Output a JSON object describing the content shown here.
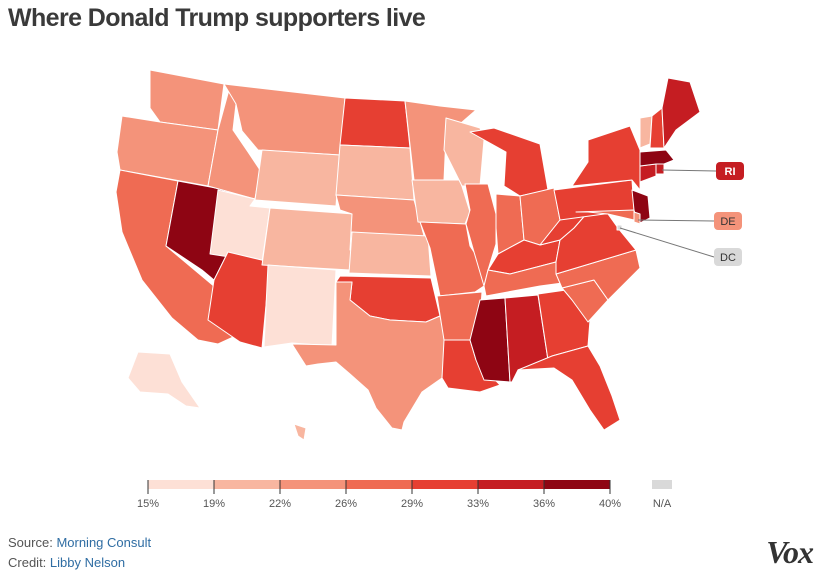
{
  "title": "Where Donald Trump supporters live",
  "colors": {
    "bins": [
      "#fde0d6",
      "#f8b6a0",
      "#f4937a",
      "#ef6b53",
      "#e63f32",
      "#c51d22",
      "#8e0513"
    ],
    "na": "#d9d9d9",
    "border": "#ffffff"
  },
  "chart_data": {
    "type": "choropleth",
    "region": "United States",
    "metric": "Share of Donald Trump supporters by state (binned)",
    "legend": {
      "ticks": [
        "15%",
        "19%",
        "22%",
        "26%",
        "29%",
        "33%",
        "36%",
        "40%"
      ],
      "na_label": "N/A"
    },
    "states": [
      {
        "code": "WA",
        "bin": 2
      },
      {
        "code": "OR",
        "bin": 2
      },
      {
        "code": "CA",
        "bin": 3
      },
      {
        "code": "NV",
        "bin": 6
      },
      {
        "code": "ID",
        "bin": 2
      },
      {
        "code": "MT",
        "bin": 2
      },
      {
        "code": "WY",
        "bin": 1
      },
      {
        "code": "UT",
        "bin": 0
      },
      {
        "code": "AZ",
        "bin": 4
      },
      {
        "code": "CO",
        "bin": 1
      },
      {
        "code": "NM",
        "bin": 0
      },
      {
        "code": "ND",
        "bin": 4
      },
      {
        "code": "SD",
        "bin": 1
      },
      {
        "code": "NE",
        "bin": 2
      },
      {
        "code": "KS",
        "bin": 1
      },
      {
        "code": "OK",
        "bin": 4
      },
      {
        "code": "TX",
        "bin": 2
      },
      {
        "code": "MN",
        "bin": 2
      },
      {
        "code": "IA",
        "bin": 1
      },
      {
        "code": "MO",
        "bin": 3
      },
      {
        "code": "AR",
        "bin": 3
      },
      {
        "code": "LA",
        "bin": 4
      },
      {
        "code": "WI",
        "bin": 1
      },
      {
        "code": "IL",
        "bin": 3
      },
      {
        "code": "MI",
        "bin": 4
      },
      {
        "code": "IN",
        "bin": 3
      },
      {
        "code": "OH",
        "bin": 3
      },
      {
        "code": "KY",
        "bin": 4
      },
      {
        "code": "TN",
        "bin": 3
      },
      {
        "code": "MS",
        "bin": 6
      },
      {
        "code": "AL",
        "bin": 5
      },
      {
        "code": "GA",
        "bin": 4
      },
      {
        "code": "FL",
        "bin": 4
      },
      {
        "code": "SC",
        "bin": 3
      },
      {
        "code": "NC",
        "bin": 3
      },
      {
        "code": "VA",
        "bin": 4
      },
      {
        "code": "WV",
        "bin": 4
      },
      {
        "code": "PA",
        "bin": 4
      },
      {
        "code": "NY",
        "bin": 4
      },
      {
        "code": "NJ",
        "bin": 6
      },
      {
        "code": "MD",
        "bin": 3
      },
      {
        "code": "DE",
        "bin": 2
      },
      {
        "code": "DC",
        "bin": null
      },
      {
        "code": "CT",
        "bin": 5
      },
      {
        "code": "RI",
        "bin": 5
      },
      {
        "code": "MA",
        "bin": 6
      },
      {
        "code": "VT",
        "bin": 1
      },
      {
        "code": "NH",
        "bin": 4
      },
      {
        "code": "ME",
        "bin": 5
      },
      {
        "code": "AK",
        "bin": 0
      },
      {
        "code": "HI",
        "bin": 1
      }
    ],
    "callouts": [
      "RI",
      "DE",
      "DC"
    ]
  },
  "footer": {
    "source_label": "Source:",
    "source_value": "Morning Consult",
    "credit_label": "Credit:",
    "credit_value": "Libby Nelson"
  },
  "logo": "Vox"
}
